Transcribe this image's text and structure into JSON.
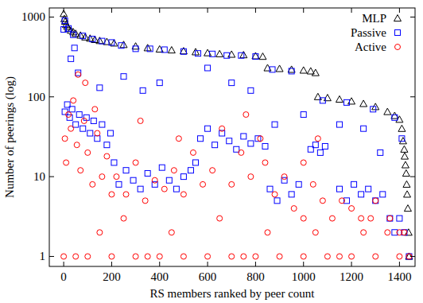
{
  "chart_data": {
    "type": "scatter",
    "x_label": "RS members ranked by peer count",
    "y_label": "Number of peerings (log)",
    "xlim": [
      -60,
      1465
    ],
    "ylim": [
      0.75,
      1300
    ],
    "xticks": [
      0,
      200,
      400,
      600,
      800,
      1000,
      1200,
      1400
    ],
    "yticks": [
      1,
      10,
      100,
      1000
    ],
    "log": "y",
    "grid": false,
    "legend": "top-right",
    "series": [
      {
        "name": "MLP",
        "color": "#000000",
        "marker": "triangle",
        "x": [
          0,
          3,
          6,
          10,
          15,
          20,
          30,
          40,
          50,
          70,
          90,
          110,
          130,
          150,
          180,
          210,
          250,
          300,
          350,
          400,
          450,
          500,
          550,
          600,
          650,
          700,
          750,
          800,
          830,
          850,
          900,
          950,
          1000,
          1030,
          1050,
          1060,
          1100,
          1150,
          1200,
          1250,
          1300,
          1350,
          1380,
          1400,
          1410,
          1415,
          1420,
          1422,
          1425,
          1428,
          1430,
          1432,
          1435,
          1438,
          1440
        ],
        "values": [
          1100,
          950,
          880,
          800,
          760,
          720,
          680,
          650,
          620,
          590,
          560,
          540,
          520,
          505,
          490,
          470,
          450,
          430,
          410,
          395,
          385,
          375,
          365,
          355,
          345,
          340,
          335,
          325,
          320,
          230,
          225,
          220,
          215,
          210,
          200,
          100,
          97,
          93,
          88,
          82,
          75,
          65,
          58,
          52,
          40,
          28,
          22,
          18,
          14,
          11,
          8,
          6,
          4,
          2,
          1
        ]
      },
      {
        "name": "Passive",
        "color": "#0000ff",
        "marker": "square",
        "x": [
          0,
          5,
          20,
          40,
          80,
          120,
          160,
          200,
          240,
          300,
          360,
          420,
          500,
          560,
          620,
          680,
          740,
          800,
          870,
          950,
          1080,
          1180,
          1290,
          1380,
          1410,
          30,
          45,
          60,
          150,
          250,
          330,
          400,
          600,
          700,
          780,
          880,
          1000,
          1150,
          1250,
          1320,
          5,
          15,
          25,
          35,
          50,
          65,
          80,
          95,
          110,
          125,
          140,
          160,
          180,
          195,
          210,
          230,
          260,
          290,
          320,
          350,
          380,
          410,
          440,
          470,
          500,
          530,
          550,
          570,
          600,
          630,
          660,
          690,
          720,
          750,
          780,
          810,
          840,
          860,
          890,
          920,
          950,
          980,
          1030,
          1050,
          1070,
          1090,
          1150,
          1180,
          1210,
          1240,
          1270,
          1300,
          1330,
          1360,
          1380,
          1400,
          1420,
          1440
        ],
        "values": [
          700,
          900,
          720,
          600,
          580,
          530,
          500,
          480,
          440,
          400,
          400,
          390,
          370,
          350,
          345,
          330,
          330,
          320,
          220,
          210,
          90,
          85,
          70,
          55,
          30,
          300,
          410,
          200,
          130,
          180,
          120,
          150,
          230,
          150,
          120,
          45,
          60,
          45,
          40,
          20,
          65,
          80,
          55,
          70,
          45,
          60,
          40,
          55,
          35,
          50,
          30,
          45,
          25,
          35,
          15,
          8,
          12,
          9,
          7,
          11,
          8,
          13,
          9,
          7,
          10,
          12,
          15,
          30,
          40,
          25,
          35,
          28,
          22,
          32,
          26,
          30,
          24,
          7,
          5,
          9,
          6,
          8,
          22,
          25,
          20,
          24,
          7,
          5,
          8,
          6,
          7,
          5,
          6,
          3,
          2,
          3,
          2,
          1
        ]
      },
      {
        "name": "Active",
        "color": "#ff0000",
        "marker": "circle",
        "x": [
          0,
          100,
          200,
          300,
          400,
          500,
          600,
          700,
          800,
          900,
          1000,
          1100,
          1200,
          1300,
          1400,
          1440,
          50,
          350,
          750,
          1150,
          150,
          450,
          850,
          1050,
          1250,
          1350,
          1420,
          250,
          650,
          1000,
          1280,
          5,
          10,
          20,
          30,
          40,
          55,
          70,
          85,
          100,
          120,
          140,
          160,
          180,
          200,
          60,
          90,
          130,
          220,
          260,
          300,
          340,
          380,
          420,
          460,
          500,
          540,
          580,
          320,
          480,
          620,
          660,
          700,
          740,
          780,
          820,
          760,
          840,
          880,
          920,
          960,
          1000,
          1040,
          1080,
          1120,
          1160,
          1200,
          1240,
          1300,
          1360,
          1400,
          1060
        ],
        "values": [
          1,
          1,
          1,
          1,
          1,
          1,
          1,
          1,
          1,
          1,
          1,
          1,
          1,
          1,
          1,
          1,
          1,
          1,
          1,
          1,
          2,
          2,
          2,
          2,
          2,
          2,
          2,
          3,
          3,
          3,
          3,
          30,
          15,
          60,
          40,
          90,
          25,
          12,
          50,
          20,
          8,
          35,
          10,
          18,
          6,
          190,
          150,
          70,
          10,
          6,
          15,
          5,
          9,
          7,
          12,
          6,
          20,
          8,
          50,
          30,
          12,
          40,
          8,
          20,
          10,
          30,
          60,
          15,
          6,
          10,
          4,
          15,
          8,
          5,
          3,
          5,
          4,
          3,
          5,
          3,
          2,
          30
        ]
      }
    ]
  }
}
